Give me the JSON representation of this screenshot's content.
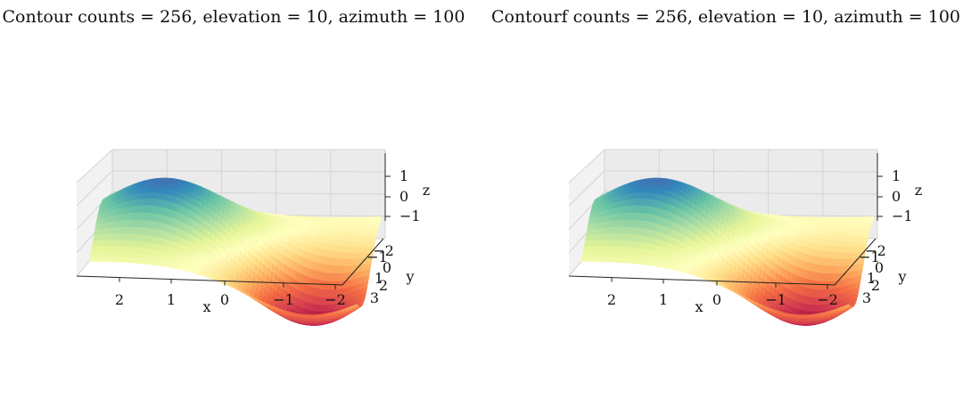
{
  "chart_data": [
    {
      "type": "contour3d",
      "title": "Contour counts = 256, elevation = 10, azimuth = 100",
      "counts": 256,
      "elevation": 10,
      "azimuth": 100,
      "colormap": "Spectral",
      "xlabel": "x",
      "ylabel": "y",
      "zlabel": "z",
      "x_ticks": [
        "2",
        "1",
        "0",
        "−2"
      ],
      "x_ticks_all": [
        "2",
        "1",
        "0",
        "−1",
        "−2"
      ],
      "y_ticks": [
        "−2",
        "−1",
        "0",
        "1",
        "2",
        "3"
      ],
      "z_ticks": [
        "1",
        "0",
        "−1"
      ],
      "xlim": [
        -2.5,
        3.0
      ],
      "ylim": [
        -2.5,
        3.5
      ],
      "zlim": [
        -1.8,
        1.8
      ]
    },
    {
      "type": "contourf3d",
      "title": "Contourf counts = 256, elevation = 10, azimuth = 100",
      "counts": 256,
      "elevation": 10,
      "azimuth": 100,
      "colormap": "Spectral",
      "xlabel": "x",
      "ylabel": "y",
      "zlabel": "z",
      "x_ticks_all": [
        "2",
        "1",
        "0",
        "−1",
        "−2"
      ],
      "y_ticks": [
        "−2",
        "−1",
        "0",
        "1",
        "2",
        "3"
      ],
      "z_ticks": [
        "1",
        "0",
        "−1"
      ],
      "xlim": [
        -2.5,
        3.0
      ],
      "ylim": [
        -2.5,
        3.5
      ],
      "zlim": [
        -1.8,
        1.8
      ]
    }
  ]
}
